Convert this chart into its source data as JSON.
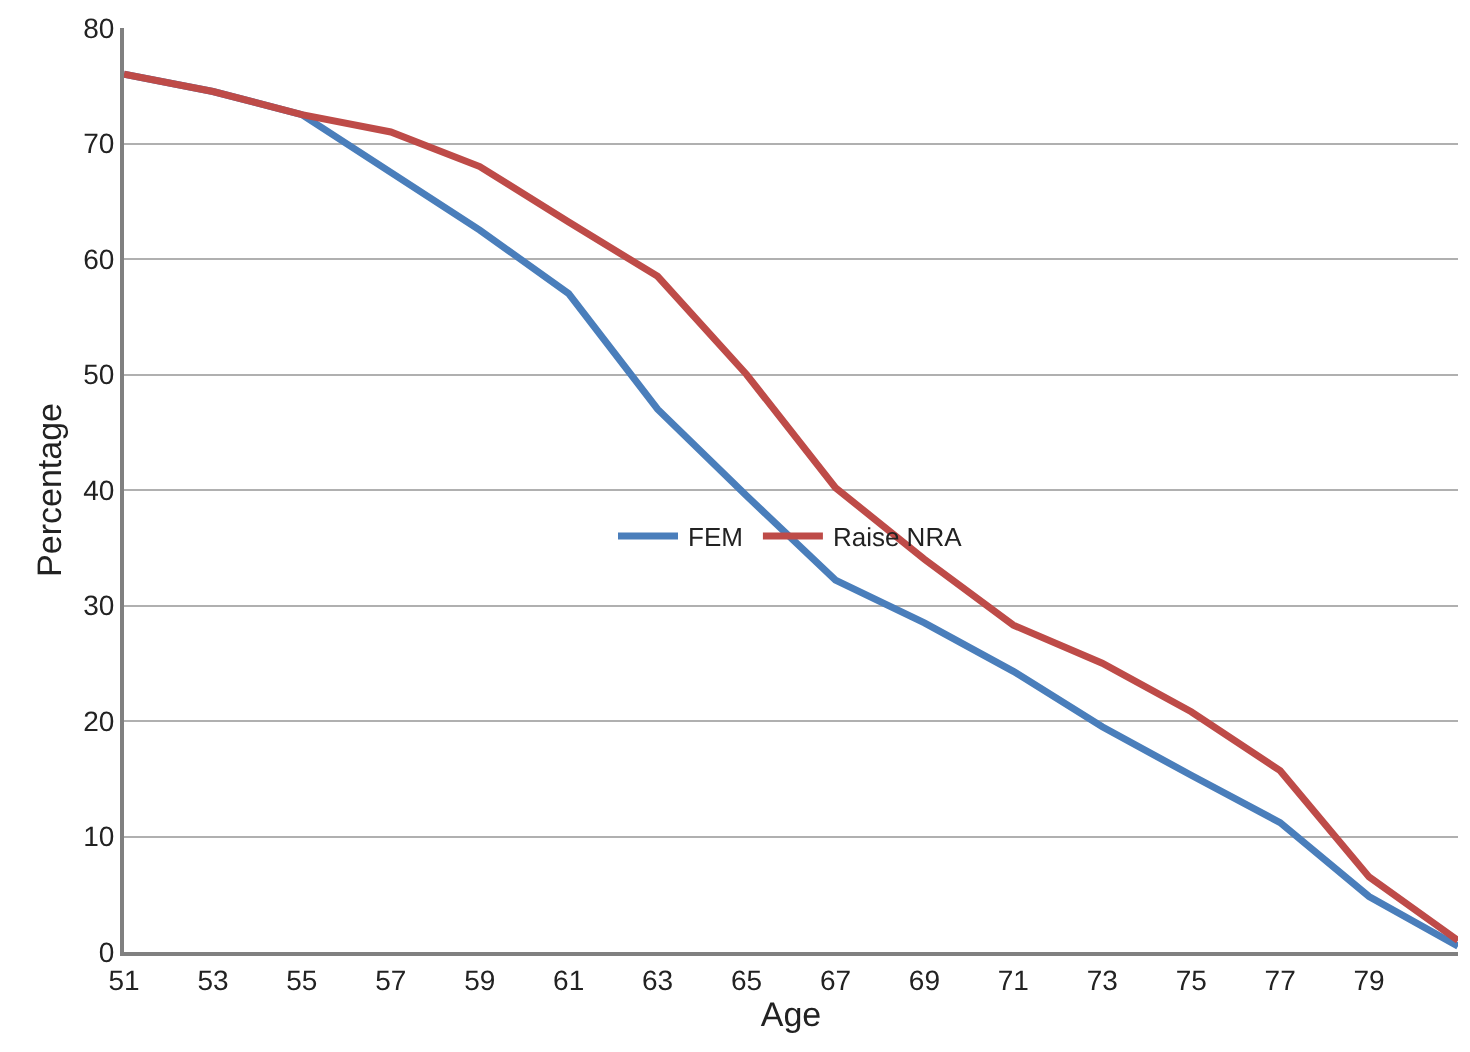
{
  "chart_data": {
    "type": "line",
    "xlabel": "Age",
    "ylabel": "Percentage",
    "x": [
      51,
      53,
      55,
      57,
      59,
      61,
      63,
      65,
      67,
      69,
      71,
      73,
      75,
      77,
      79,
      81
    ],
    "series": [
      {
        "name": "FEM",
        "color": "#4a7ebb",
        "values": [
          76,
          74.5,
          72.5,
          67.5,
          62.5,
          57,
          47,
          39.5,
          32.2,
          28.5,
          24.3,
          19.5,
          15.3,
          11.2,
          4.8,
          0.5
        ]
      },
      {
        "name": "Raise NRA",
        "color": "#be4b48",
        "values": [
          76,
          74.5,
          72.5,
          71,
          68,
          63.2,
          58.5,
          50,
          40.2,
          34,
          28.3,
          25,
          20.8,
          15.7,
          6.5,
          1
        ]
      }
    ],
    "xlim": [
      51,
      81
    ],
    "xticks": [
      51,
      53,
      55,
      57,
      59,
      61,
      63,
      65,
      67,
      69,
      71,
      73,
      75,
      77,
      79
    ],
    "ylim": [
      0,
      80
    ],
    "yticks": [
      0,
      10,
      20,
      30,
      40,
      50,
      60,
      70,
      80
    ],
    "grid": "y",
    "legend": "center",
    "marker": "none",
    "line_style": "solid"
  }
}
